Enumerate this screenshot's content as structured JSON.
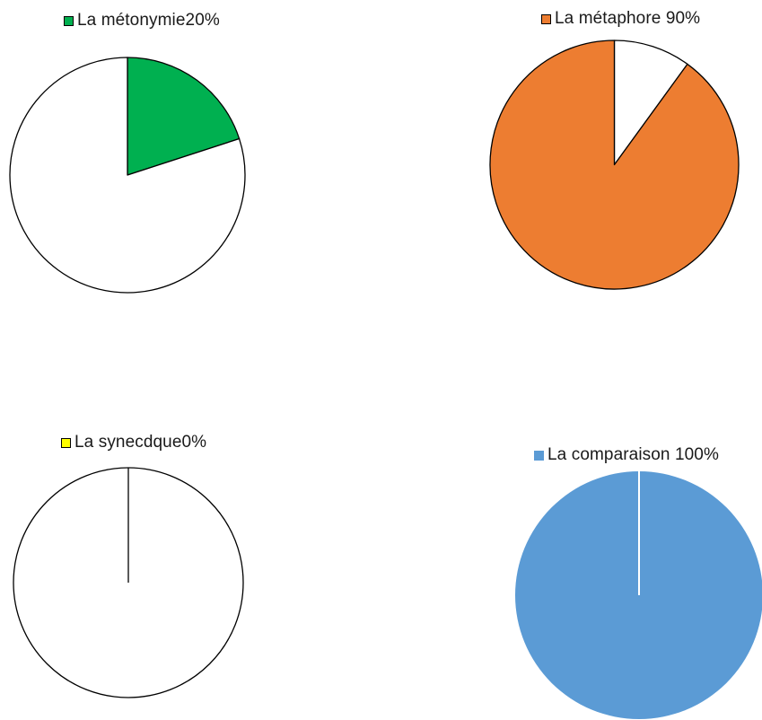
{
  "chart_data": [
    {
      "type": "pie",
      "legend": "La métonymie20%",
      "slices": [
        {
          "value": 20,
          "color": "#00b050",
          "outlined": true
        },
        {
          "value": 80,
          "color": "#ffffff",
          "outlined": true
        }
      ],
      "legend_color": "#00b050",
      "legend_outlined": true
    },
    {
      "type": "pie",
      "legend": "La métaphore 90%",
      "slices": [
        {
          "value": 10,
          "color": "#ffffff",
          "outlined": true
        },
        {
          "value": 90,
          "color": "#ed7d31",
          "outlined": true
        }
      ],
      "legend_color": "#ed7d31",
      "legend_outlined": true
    },
    {
      "type": "pie",
      "legend": "La synecdque0%",
      "slices": [
        {
          "value": 0,
          "color": "#ffff00",
          "outlined": true
        },
        {
          "value": 100,
          "color": "#ffffff",
          "outlined": true
        }
      ],
      "legend_color": "#ffff00",
      "legend_outlined": true
    },
    {
      "type": "pie",
      "legend": "La comparaison 100%",
      "slices": [
        {
          "value": 100,
          "color": "#5b9bd5",
          "outlined": false
        }
      ],
      "legend_color": "#5b9bd5",
      "legend_outlined": false,
      "separator_color": "#ffffff"
    }
  ]
}
